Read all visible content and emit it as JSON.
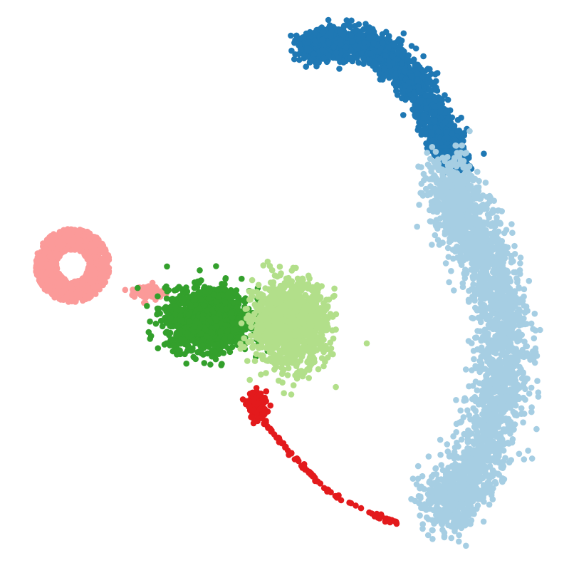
{
  "chart_data": {
    "type": "scatter",
    "title": "",
    "xlabel": "",
    "ylabel": "",
    "axes_visible": false,
    "legend": "none",
    "grid": false,
    "point_radius_hint": "small",
    "colors": {
      "dark_blue": "#1f78b4",
      "light_blue": "#a6cee3",
      "dark_green": "#33a02c",
      "light_green": "#b2df8a",
      "red": "#e31a1c",
      "pink": "#fb9a99"
    },
    "xlim": [
      0,
      100
    ],
    "ylim": [
      0,
      100
    ],
    "clusters": [
      {
        "color_key": "pink",
        "center": [
          11,
          53
        ],
        "spread": [
          6.5,
          6.5
        ],
        "count": 1100,
        "shape": "ring"
      },
      {
        "color_key": "pink",
        "center": [
          25,
          48
        ],
        "spread": [
          3,
          1.5
        ],
        "count": 60,
        "shape": "blob"
      },
      {
        "color_key": "dark_green",
        "center": [
          36,
          43
        ],
        "spread": [
          7,
          5
        ],
        "count": 1500,
        "shape": "blob"
      },
      {
        "color_key": "light_green",
        "center": [
          51,
          42
        ],
        "spread": [
          6,
          7
        ],
        "count": 1300,
        "shape": "blob"
      },
      {
        "color_key": "red",
        "center": [
          45,
          27
        ],
        "spread": [
          1.6,
          2.2
        ],
        "count": 160,
        "shape": "blob"
      },
      {
        "color_key": "red",
        "path": [
          [
            46,
            24
          ],
          [
            52,
            17
          ],
          [
            58,
            11
          ],
          [
            65,
            7
          ],
          [
            71,
            5
          ]
        ],
        "count": 90,
        "shape": "trail"
      },
      {
        "color_key": "dark_blue",
        "path": [
          [
            54,
            93
          ],
          [
            60,
            95
          ],
          [
            68,
            93
          ],
          [
            74,
            87
          ],
          [
            79,
            78
          ],
          [
            81,
            72
          ]
        ],
        "spread": [
          3.5,
          3.5
        ],
        "count": 1600,
        "shape": "trail"
      },
      {
        "color_key": "light_blue",
        "path": [
          [
            80,
            69
          ],
          [
            83,
            62
          ],
          [
            88,
            52
          ],
          [
            91,
            38
          ],
          [
            89,
            25
          ],
          [
            84,
            12
          ],
          [
            78,
            8
          ]
        ],
        "spread": [
          5.5,
          7
        ],
        "count": 2600,
        "shape": "trail"
      }
    ]
  }
}
